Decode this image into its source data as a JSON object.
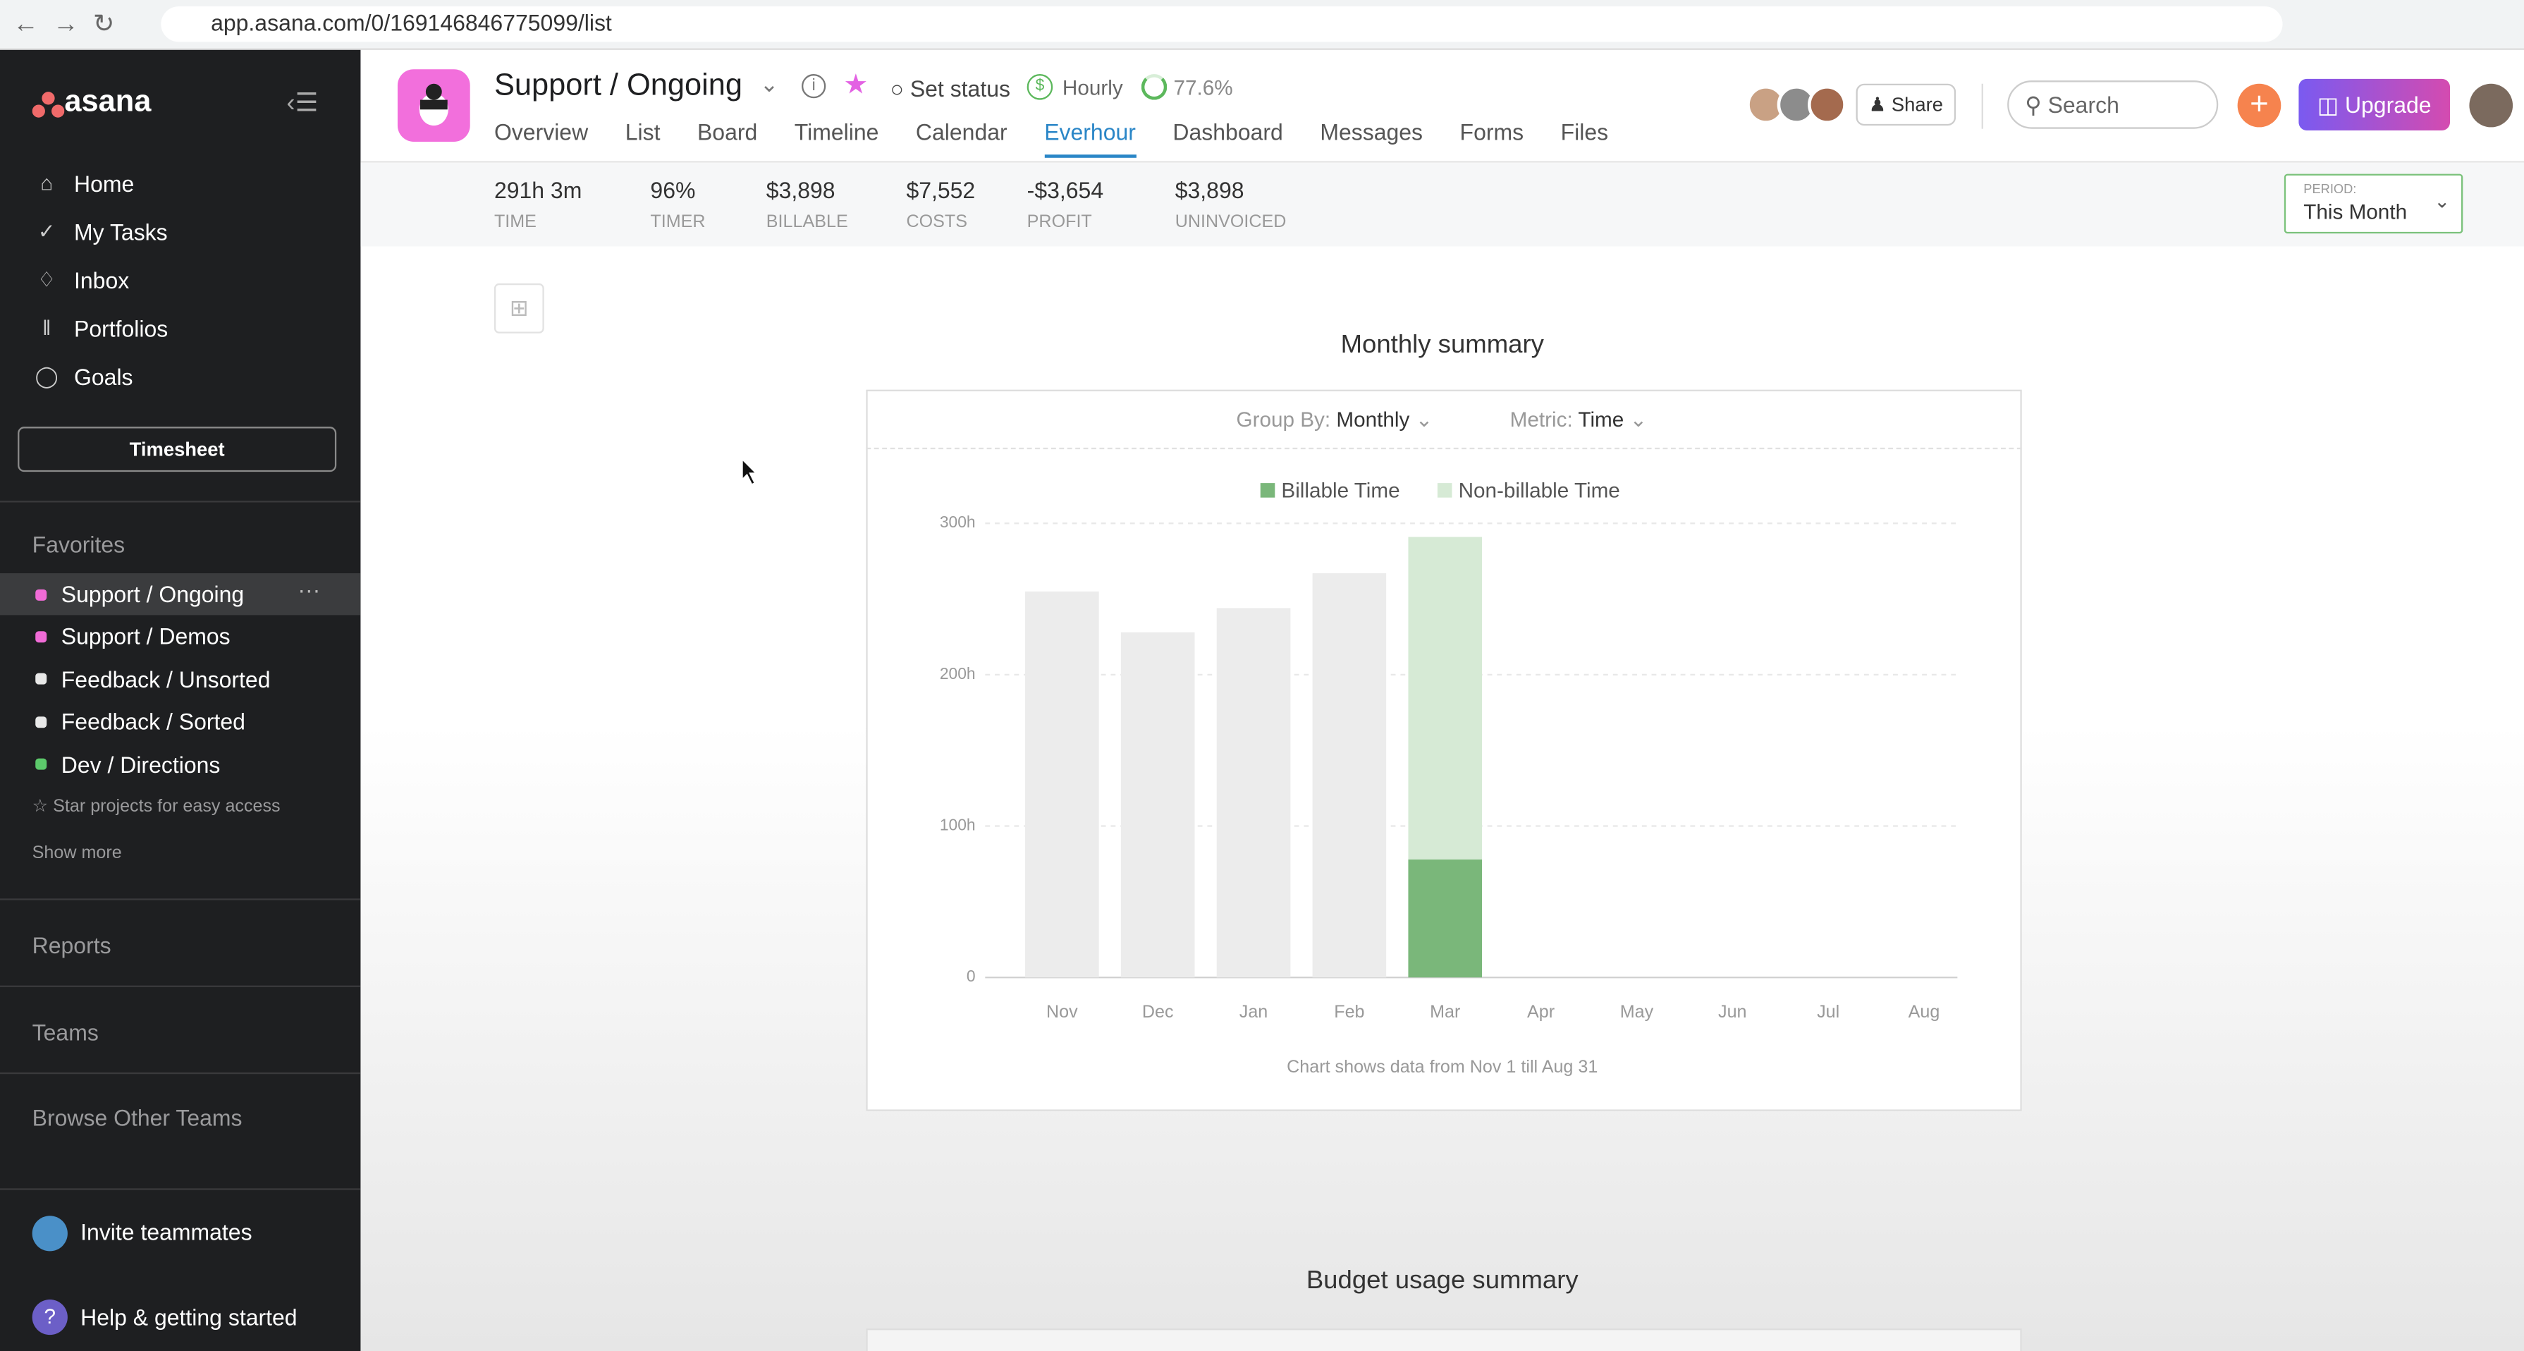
{
  "browser": {
    "url": "app.asana.com/0/169146846775099/list"
  },
  "sidebar": {
    "logo": "asana",
    "nav": [
      "Home",
      "My Tasks",
      "Inbox",
      "Portfolios",
      "Goals"
    ],
    "timesheet": "Timesheet",
    "favorites_title": "Favorites",
    "favorites": [
      {
        "label": "Support / Ongoing",
        "color": "#f06bd6"
      },
      {
        "label": "Support / Demos",
        "color": "#f06bd6"
      },
      {
        "label": "Feedback / Unsorted",
        "color": "#e8e8e8"
      },
      {
        "label": "Feedback / Sorted",
        "color": "#e8e8e8"
      },
      {
        "label": "Dev / Directions",
        "color": "#5cc96b"
      }
    ],
    "star_hint": "Star projects for easy access",
    "show_more": "Show more",
    "sections": [
      "Reports",
      "Teams",
      "Browse Other Teams"
    ],
    "invite": "Invite teammates",
    "help": "Help & getting started"
  },
  "header": {
    "title": "Support / Ongoing",
    "set_status": "Set status",
    "billing": "Hourly",
    "progress": "77.6%",
    "tabs": [
      "Overview",
      "List",
      "Board",
      "Timeline",
      "Calendar",
      "Everhour",
      "Dashboard",
      "Messages",
      "Forms",
      "Files"
    ],
    "active_tab": 5,
    "share": "Share",
    "search": "Search",
    "upgrade": "Upgrade"
  },
  "stats": [
    {
      "value": "291h 3m",
      "label": "TIME"
    },
    {
      "value": "96%",
      "label": "TIMER"
    },
    {
      "value": "$3,898",
      "label": "BILLABLE"
    },
    {
      "value": "$7,552",
      "label": "COSTS"
    },
    {
      "value": "-$3,654",
      "label": "PROFIT"
    },
    {
      "value": "$3,898",
      "label": "UNINVOICED"
    }
  ],
  "period": {
    "caption": "PERIOD:",
    "value": "This Month"
  },
  "chart_data": {
    "type": "bar",
    "stacked": true,
    "title": "Monthly summary",
    "group_by_label": "Group By:",
    "group_by": "Monthly",
    "metric_label": "Metric:",
    "metric": "Time",
    "categories": [
      "Nov",
      "Dec",
      "Jan",
      "Feb",
      "Mar",
      "Apr",
      "May",
      "Jun",
      "Jul",
      "Aug"
    ],
    "values": [
      255,
      228,
      244,
      267,
      null,
      null,
      null,
      null,
      null,
      null
    ],
    "color": "#ececec",
    "series": [
      {
        "name": "Billable Time",
        "color": "#7ab77a",
        "values": [
          null,
          null,
          null,
          null,
          78,
          null,
          null,
          null,
          null,
          null
        ]
      },
      {
        "name": "Non-billable Time",
        "color": "#d6ead5",
        "values": [
          null,
          null,
          null,
          null,
          213,
          null,
          null,
          null,
          null,
          null
        ]
      }
    ],
    "ylim": [
      0,
      300
    ],
    "yticks": [
      0,
      {
        "value": 100,
        "label": "100h"
      },
      {
        "value": 200,
        "label": "200h"
      },
      {
        "value": 300,
        "label": "300h"
      }
    ],
    "grid": true,
    "footnote": "Chart shows data from Nov 1 till Aug 31"
  },
  "budget": {
    "title": "Budget usage summary"
  }
}
